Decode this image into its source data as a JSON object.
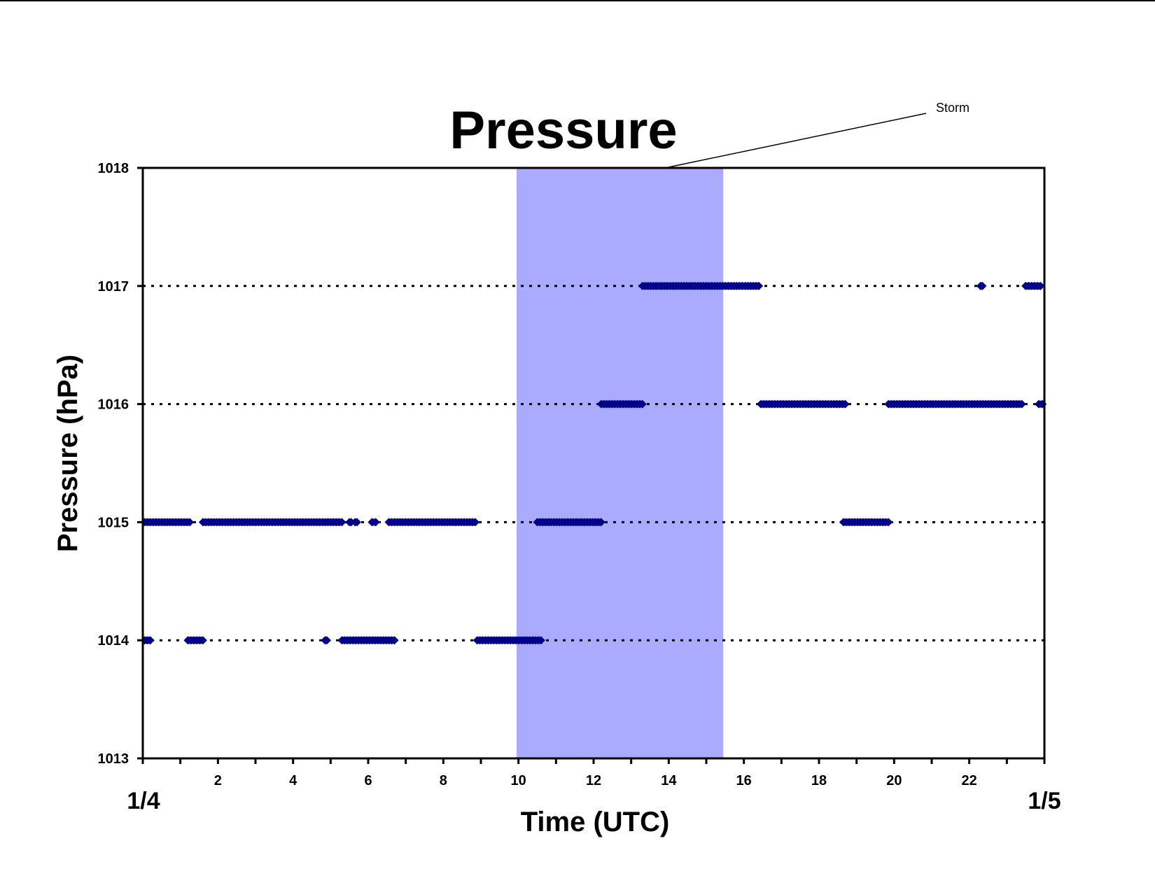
{
  "chart_data": {
    "type": "scatter",
    "title": "Pressure",
    "xlabel": "Time (UTC)",
    "ylabel": "Pressure (hPa)",
    "xlim": [
      0,
      24
    ],
    "ylim": [
      1013,
      1018
    ],
    "x_ticks": [
      2,
      4,
      6,
      8,
      10,
      12,
      14,
      16,
      18,
      20,
      22
    ],
    "y_ticks": [
      1013,
      1014,
      1015,
      1016,
      1017,
      1018
    ],
    "start_date_label": "1/4",
    "end_date_label": "1/5",
    "grid": "dotted horizontal lines at 1014, 1015, 1016 and 1017",
    "storm_span": [
      9.95,
      15.45
    ],
    "storm_label": "Storm",
    "colors": {
      "points": "#00008b",
      "storm": "#aaaaff",
      "axes": "#000000"
    },
    "segments": [
      {
        "y": 1014,
        "x_start": 0.05,
        "x_end": 0.2
      },
      {
        "y": 1014,
        "x_start": 1.2,
        "x_end": 1.6
      },
      {
        "y": 1014,
        "x_start": 4.85,
        "x_end": 4.9
      },
      {
        "y": 1014,
        "x_start": 5.3,
        "x_end": 6.7
      },
      {
        "y": 1014,
        "x_start": 8.9,
        "x_end": 10.6
      },
      {
        "y": 1015,
        "x_start": 0.05,
        "x_end": 1.25
      },
      {
        "y": 1015,
        "x_start": 1.6,
        "x_end": 5.3
      },
      {
        "y": 1015,
        "x_start": 5.5,
        "x_end": 5.55
      },
      {
        "y": 1015,
        "x_start": 5.65,
        "x_end": 5.7
      },
      {
        "y": 1015,
        "x_start": 6.1,
        "x_end": 6.2
      },
      {
        "y": 1015,
        "x_start": 6.55,
        "x_end": 8.85
      },
      {
        "y": 1015,
        "x_start": 10.5,
        "x_end": 12.2
      },
      {
        "y": 1015,
        "x_start": 18.65,
        "x_end": 19.85
      },
      {
        "y": 1016,
        "x_start": 12.2,
        "x_end": 13.3
      },
      {
        "y": 1016,
        "x_start": 16.45,
        "x_end": 18.7
      },
      {
        "y": 1016,
        "x_start": 19.85,
        "x_end": 23.4
      },
      {
        "y": 1016,
        "x_start": 23.85,
        "x_end": 23.95
      },
      {
        "y": 1017,
        "x_start": 13.3,
        "x_end": 16.4
      },
      {
        "y": 1017,
        "x_start": 22.3,
        "x_end": 22.35
      },
      {
        "y": 1017,
        "x_start": 23.5,
        "x_end": 23.9
      }
    ]
  }
}
